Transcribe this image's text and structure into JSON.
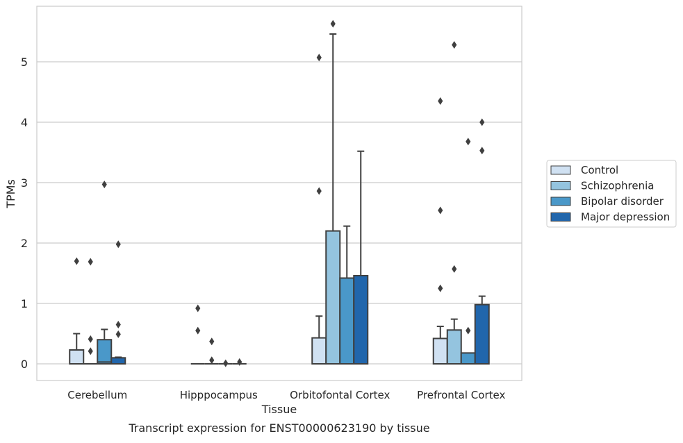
{
  "chart_data": {
    "type": "box",
    "title": "",
    "caption": "Transcript expression for ENST00000623190 by tissue",
    "xlabel": "Tissue",
    "ylabel": "TPMs",
    "categories": [
      "Cerebellum",
      "Hipppocampus",
      "Orbitofontal Cortex",
      "Prefrontal Cortex"
    ],
    "yticks": [
      0,
      1,
      2,
      3,
      4,
      5
    ],
    "ylim": [
      -0.28,
      5.88
    ],
    "grid": "horizontal",
    "legend_position": "right",
    "series": [
      {
        "name": "Control",
        "color": "#d0e1f2",
        "boxes": [
          {
            "q1": 0.0,
            "median": 0.0,
            "q3": 0.23,
            "whisker_low": 0.0,
            "whisker_high": 0.5,
            "outliers": [
              1.7
            ]
          },
          {
            "q1": 0.0,
            "median": 0.0,
            "q3": 0.0,
            "whisker_low": 0.0,
            "whisker_high": 0.0,
            "outliers": [
              0.92,
              0.55
            ]
          },
          {
            "q1": 0.0,
            "median": 0.0,
            "q3": 0.43,
            "whisker_low": 0.0,
            "whisker_high": 0.79,
            "outliers": [
              5.07,
              2.86
            ]
          },
          {
            "q1": 0.0,
            "median": 0.0,
            "q3": 0.42,
            "whisker_low": 0.0,
            "whisker_high": 0.62,
            "outliers": [
              4.35,
              2.54,
              1.25
            ]
          }
        ]
      },
      {
        "name": "Schizophrenia",
        "color": "#94c4df",
        "boxes": [
          {
            "q1": 0.0,
            "median": 0.0,
            "q3": 0.0,
            "whisker_low": 0.0,
            "whisker_high": 0.0,
            "outliers": [
              1.69,
              0.41,
              0.21
            ]
          },
          {
            "q1": 0.0,
            "median": 0.0,
            "q3": 0.0,
            "whisker_low": 0.0,
            "whisker_high": 0.0,
            "outliers": [
              0.37,
              0.06
            ]
          },
          {
            "q1": 0.0,
            "median": 0.0,
            "q3": 2.2,
            "whisker_low": 0.0,
            "whisker_high": 5.46,
            "outliers": [
              5.63
            ]
          },
          {
            "q1": 0.0,
            "median": 0.0,
            "q3": 0.56,
            "whisker_low": 0.0,
            "whisker_high": 0.74,
            "outliers": [
              5.28,
              1.57
            ]
          }
        ]
      },
      {
        "name": "Bipolar disorder",
        "color": "#4a98c9",
        "boxes": [
          {
            "q1": 0.0,
            "median": 0.03,
            "q3": 0.4,
            "whisker_low": 0.0,
            "whisker_high": 0.57,
            "outliers": [
              2.97
            ]
          },
          {
            "q1": 0.0,
            "median": 0.0,
            "q3": 0.0,
            "whisker_low": 0.0,
            "whisker_high": 0.0,
            "outliers": [
              0.01
            ]
          },
          {
            "q1": 0.0,
            "median": 0.0,
            "q3": 1.42,
            "whisker_low": 0.0,
            "whisker_high": 2.28,
            "outliers": []
          },
          {
            "q1": 0.0,
            "median": 0.0,
            "q3": 0.18,
            "whisker_low": 0.0,
            "whisker_high": 0.18,
            "outliers": [
              3.68,
              0.55
            ]
          }
        ]
      },
      {
        "name": "Major depression",
        "color": "#2166ac",
        "boxes": [
          {
            "q1": 0.0,
            "median": 0.0,
            "q3": 0.1,
            "whisker_low": 0.0,
            "whisker_high": 0.11,
            "outliers": [
              1.98,
              0.65,
              0.49
            ]
          },
          {
            "q1": 0.0,
            "median": 0.0,
            "q3": 0.0,
            "whisker_low": 0.0,
            "whisker_high": 0.0,
            "outliers": [
              0.03
            ]
          },
          {
            "q1": 0.0,
            "median": 0.0,
            "q3": 1.46,
            "whisker_low": 0.0,
            "whisker_high": 3.52,
            "outliers": []
          },
          {
            "q1": 0.0,
            "median": 0.0,
            "q3": 0.98,
            "whisker_low": 0.0,
            "whisker_high": 1.12,
            "outliers": [
              4.0,
              3.53
            ]
          }
        ]
      }
    ]
  }
}
